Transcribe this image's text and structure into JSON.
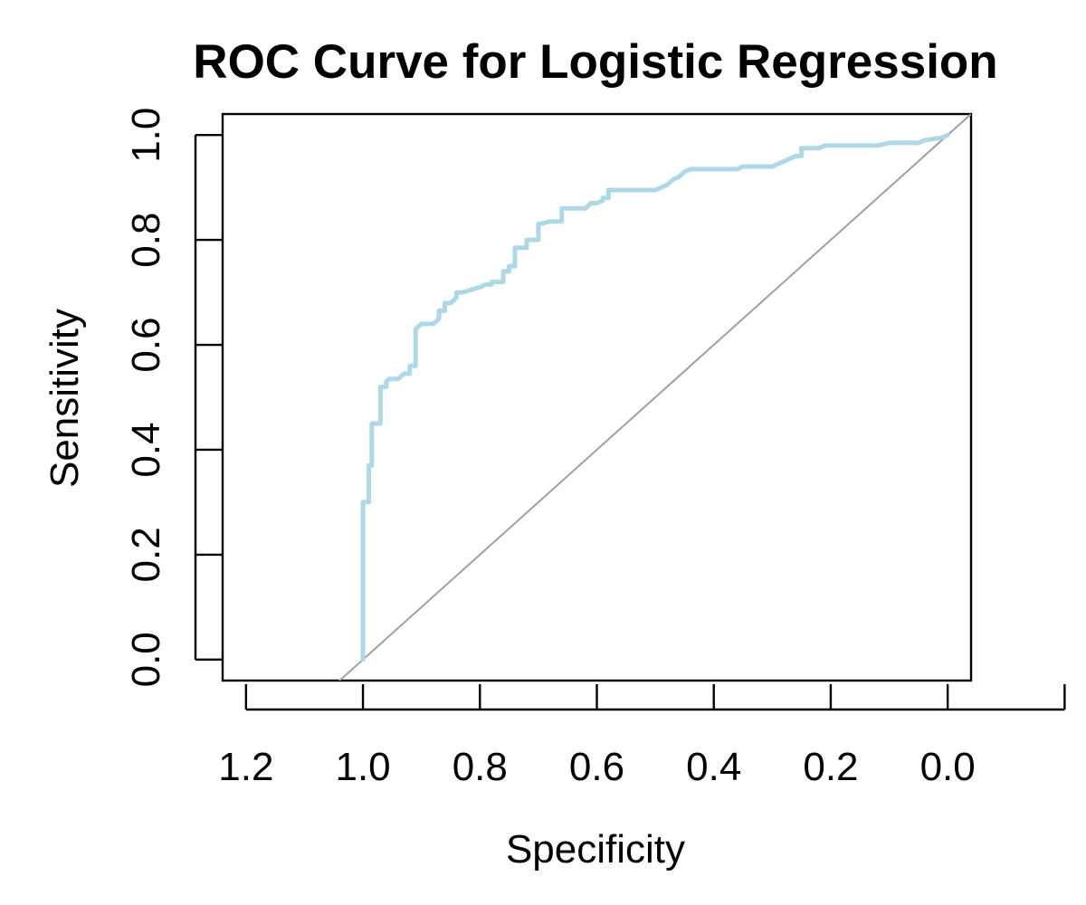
{
  "chart_data": {
    "type": "line",
    "title": "ROC Curve for Logistic Regression",
    "xlabel": "Specificity",
    "ylabel": "Sensitivity",
    "x_axis_reversed": true,
    "xlim": [
      1.24,
      -0.04
    ],
    "ylim": [
      -0.04,
      1.04
    ],
    "x_ticks": [
      1.2,
      1.0,
      0.8,
      0.6,
      0.4,
      0.2,
      0.0
    ],
    "x_tick_labels": [
      "1.2",
      "1.0",
      "0.8",
      "0.6",
      "0.4",
      "0.2",
      "0.0"
    ],
    "y_ticks": [
      0.0,
      0.2,
      0.4,
      0.6,
      0.8,
      1.0
    ],
    "y_tick_labels": [
      "0.0",
      "0.2",
      "0.4",
      "0.6",
      "0.8",
      "1.0"
    ],
    "grid": false,
    "colors": {
      "roc": "#add8e6",
      "reference": "#a0a0a0",
      "axes": "#000000"
    },
    "reference_line": {
      "x": [
        1.0,
        0.0
      ],
      "y": [
        0.0,
        1.0
      ]
    },
    "series": [
      {
        "x": [
          1.0,
          1.0,
          0.99,
          0.99,
          0.985,
          0.985,
          0.97,
          0.97,
          0.96,
          0.96,
          0.955,
          0.94,
          0.93,
          0.92,
          0.92,
          0.91,
          0.91,
          0.9,
          0.88,
          0.87,
          0.87,
          0.86,
          0.86,
          0.85,
          0.84,
          0.84,
          0.83,
          0.83,
          0.8,
          0.79,
          0.78,
          0.78,
          0.76,
          0.76,
          0.75,
          0.75,
          0.74,
          0.74,
          0.72,
          0.72,
          0.7,
          0.7,
          0.68,
          0.66,
          0.66,
          0.62,
          0.61,
          0.6,
          0.59,
          0.59,
          0.58,
          0.58,
          0.5,
          0.49,
          0.48,
          0.47,
          0.46,
          0.45,
          0.44,
          0.36,
          0.35,
          0.3,
          0.29,
          0.28,
          0.27,
          0.26,
          0.25,
          0.25,
          0.22,
          0.21,
          0.12,
          0.1,
          0.05,
          0.04,
          0.01,
          0.0
        ],
        "y": [
          0.0,
          0.3,
          0.3,
          0.37,
          0.37,
          0.45,
          0.45,
          0.52,
          0.52,
          0.53,
          0.535,
          0.535,
          0.545,
          0.545,
          0.56,
          0.56,
          0.63,
          0.64,
          0.64,
          0.65,
          0.665,
          0.665,
          0.68,
          0.68,
          0.69,
          0.7,
          0.7,
          0.7,
          0.71,
          0.715,
          0.715,
          0.72,
          0.72,
          0.74,
          0.74,
          0.75,
          0.75,
          0.785,
          0.785,
          0.8,
          0.8,
          0.83,
          0.835,
          0.835,
          0.86,
          0.86,
          0.87,
          0.87,
          0.875,
          0.88,
          0.88,
          0.895,
          0.895,
          0.9,
          0.905,
          0.915,
          0.92,
          0.93,
          0.935,
          0.935,
          0.94,
          0.94,
          0.945,
          0.95,
          0.955,
          0.96,
          0.96,
          0.975,
          0.975,
          0.98,
          0.98,
          0.985,
          0.985,
          0.99,
          0.995,
          1.0
        ]
      }
    ]
  }
}
